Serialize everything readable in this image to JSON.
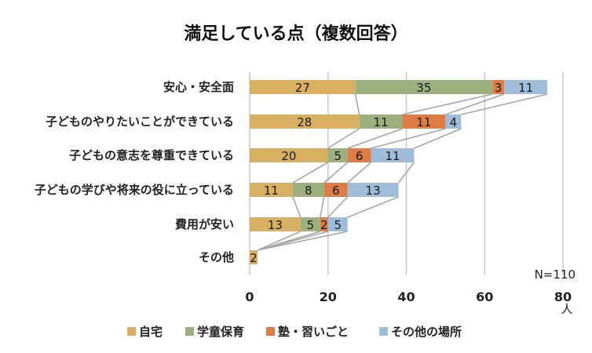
{
  "chart_data": {
    "type": "bar",
    "orientation": "horizontal",
    "stacked": true,
    "title": "満足している点（複数回答）",
    "categories": [
      "安心・安全面",
      "子どものやりたいことができている",
      "子どもの意志を尊重できている",
      "子どもの学びや将来の役に立っている",
      "費用が安い",
      "その他"
    ],
    "series": [
      {
        "name": "自宅",
        "color": "#d9b062",
        "values": [
          27,
          28,
          20,
          11,
          13,
          2
        ]
      },
      {
        "name": "学童保育",
        "color": "#9caf7f",
        "values": [
          35,
          11,
          5,
          8,
          5,
          0
        ]
      },
      {
        "name": "塾・習いごと",
        "color": "#dd7d45",
        "values": [
          3,
          11,
          6,
          6,
          2,
          0
        ]
      },
      {
        "name": "その他の場所",
        "color": "#9fbdd8",
        "values": [
          11,
          4,
          11,
          13,
          5,
          0
        ]
      }
    ],
    "xlim": [
      0,
      80
    ],
    "xticks": [
      0,
      20,
      40,
      60,
      80
    ],
    "xunit": "人",
    "note": "N=110",
    "grid": true,
    "legend_position": "bottom",
    "series_lines": true
  }
}
